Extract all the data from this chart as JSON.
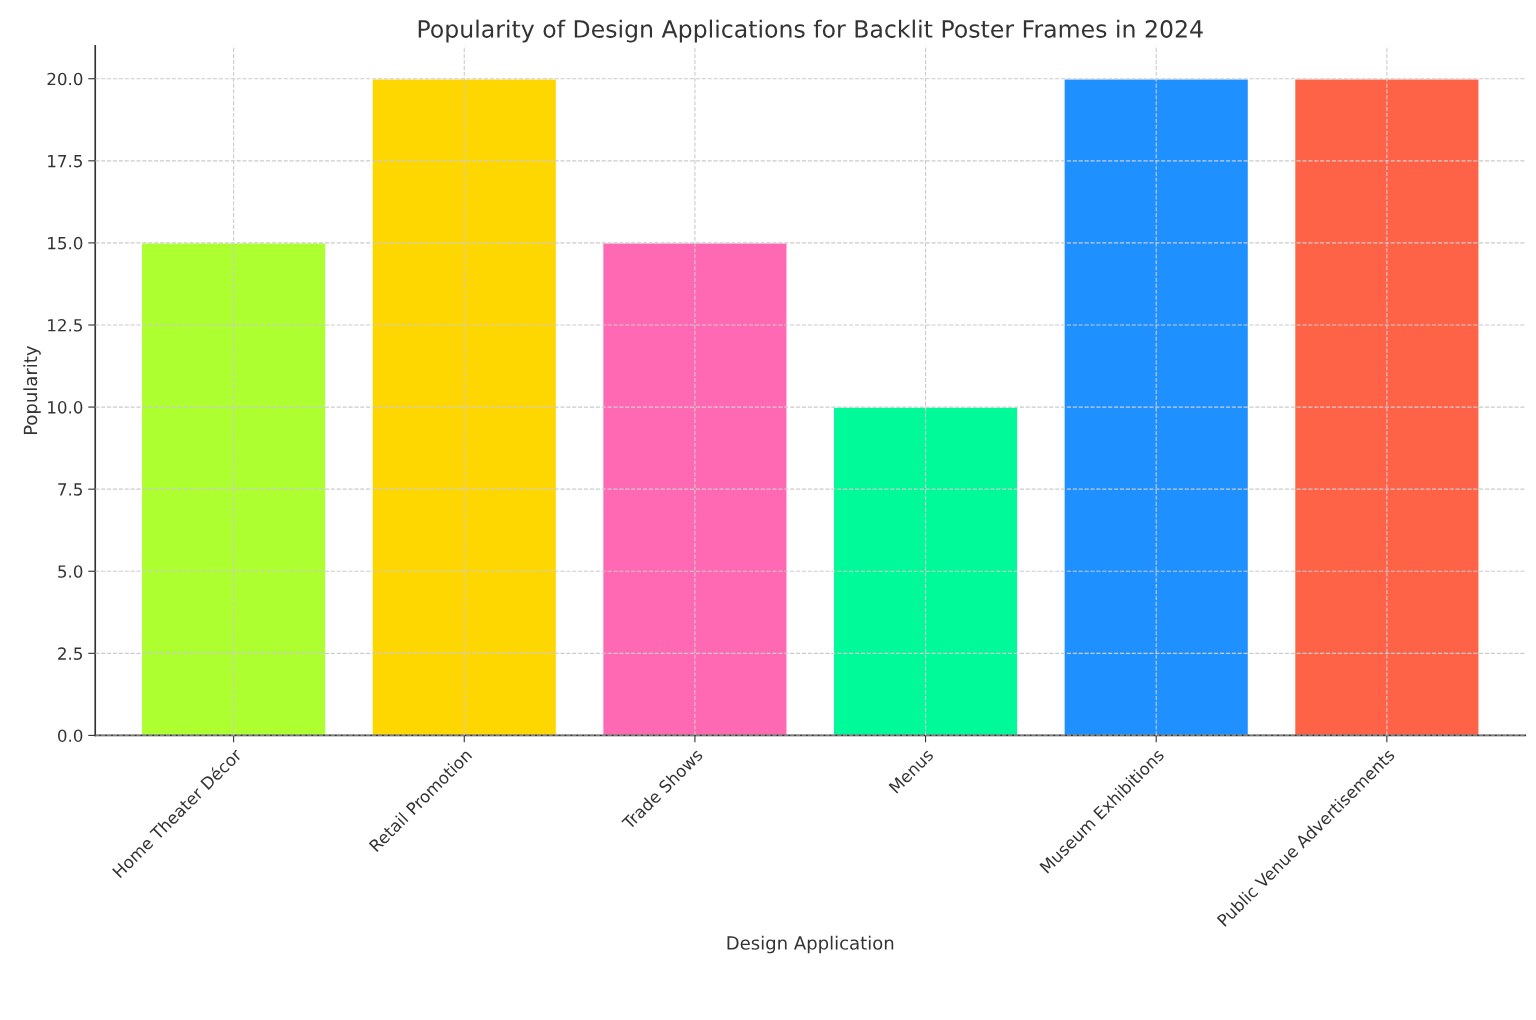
{
  "chart_data": {
    "type": "bar",
    "title": "Popularity of Design Applications for Backlit Poster Frames in 2024",
    "xlabel": "Design Application",
    "ylabel": "Popularity",
    "categories": [
      "Home Theater Décor",
      "Retail Promotion",
      "Trade Shows",
      "Menus",
      "Museum Exhibitions",
      "Public Venue Advertisements"
    ],
    "values": [
      15,
      20,
      15,
      10,
      20,
      20
    ],
    "colors": [
      "#adff2f",
      "#ffd700",
      "#ff69b4",
      "#00fa9a",
      "#1e90ff",
      "#ff6347"
    ],
    "ylim": [
      0,
      21
    ],
    "yticks": [
      {
        "value": 0,
        "label": "0.0"
      },
      {
        "value": 2.5,
        "label": "2.5"
      },
      {
        "value": 5,
        "label": "5.0"
      },
      {
        "value": 7.5,
        "label": "7.5"
      },
      {
        "value": 10,
        "label": "10.0"
      },
      {
        "value": 12.5,
        "label": "12.5"
      },
      {
        "value": 15,
        "label": "15.0"
      },
      {
        "value": 17.5,
        "label": "17.5"
      },
      {
        "value": 20,
        "label": "20.0"
      }
    ],
    "grid": true,
    "line_style": "dashed"
  }
}
